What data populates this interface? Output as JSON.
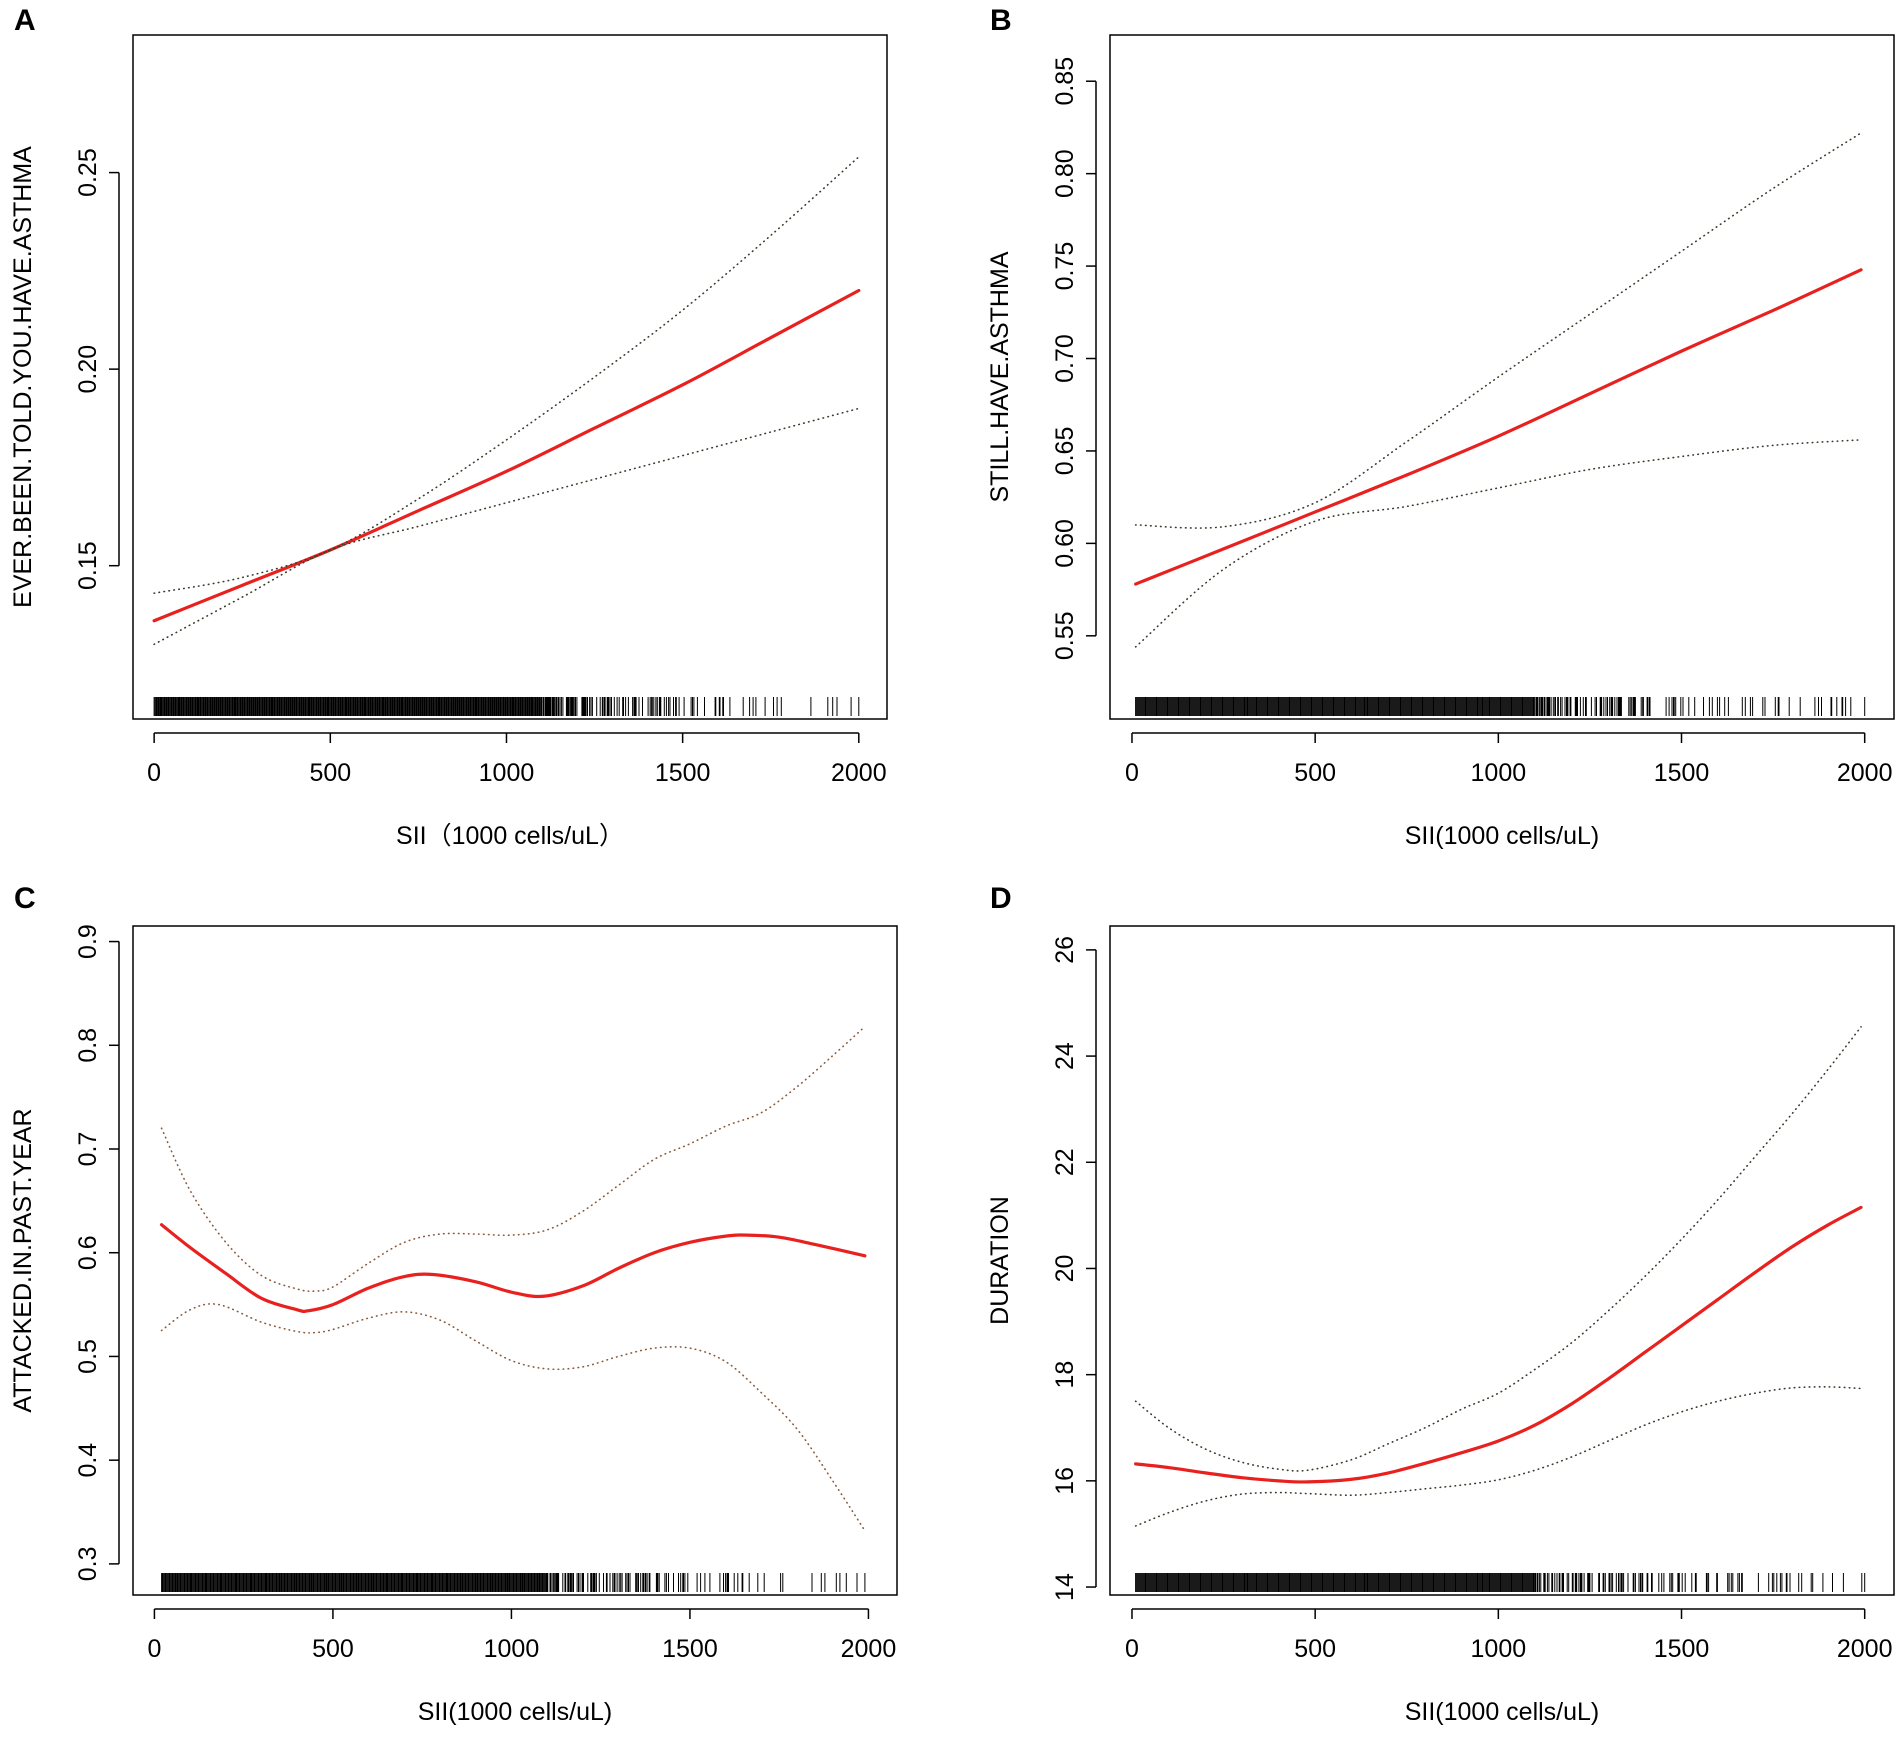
{
  "chart_data": [
    {
      "type": "line",
      "panel_label": "A",
      "xlabel": "SII（1000 cells/uL）",
      "ylabel": "EVER.BEEN.TOLD.YOU.HAVE.ASTHMA",
      "xlim": [
        -60,
        2080
      ],
      "ylim": [
        0.111,
        0.285
      ],
      "xticks": [
        0,
        500,
        1000,
        1500,
        2000
      ],
      "xtick_labels": [
        "0",
        "500",
        "1000",
        "1500",
        "2000"
      ],
      "yticks": [
        0.15,
        0.2,
        0.25
      ],
      "ytick_labels": [
        "0.15",
        "0.20",
        "0.25"
      ],
      "rug_range": [
        0,
        2000
      ],
      "series": [
        {
          "name": "fit",
          "style": "solid",
          "color": "#e8211f",
          "x": [
            0,
            250,
            500,
            750,
            1000,
            1250,
            1500,
            1750,
            2000
          ],
          "y": [
            0.136,
            0.145,
            0.154,
            0.164,
            0.174,
            0.185,
            0.196,
            0.208,
            0.22
          ]
        },
        {
          "name": "upper 95% CI",
          "style": "dotted",
          "color": "#3a3a2a",
          "x": [
            0,
            250,
            500,
            750,
            1000,
            1250,
            1500,
            1750,
            2000
          ],
          "y": [
            0.143,
            0.147,
            0.154,
            0.167,
            0.182,
            0.198,
            0.215,
            0.234,
            0.254
          ]
        },
        {
          "name": "lower 95% CI",
          "style": "dotted",
          "color": "#3a3a2a",
          "x": [
            0,
            250,
            500,
            750,
            1000,
            1250,
            1500,
            1750,
            2000
          ],
          "y": [
            0.13,
            0.142,
            0.154,
            0.16,
            0.166,
            0.172,
            0.178,
            0.184,
            0.19
          ]
        }
      ]
    },
    {
      "type": "line",
      "panel_label": "B",
      "xlabel": "SII(1000 cells/uL)",
      "ylabel": "STILL.HAVE.ASTHMA",
      "xlim": [
        -60,
        2080
      ],
      "ylim": [
        0.505,
        0.875
      ],
      "xticks": [
        0,
        500,
        1000,
        1500,
        2000
      ],
      "xtick_labels": [
        "0",
        "500",
        "1000",
        "1500",
        "2000"
      ],
      "yticks": [
        0.55,
        0.6,
        0.65,
        0.7,
        0.75,
        0.8,
        0.85
      ],
      "ytick_labels": [
        "0.55",
        "0.60",
        "0.65",
        "0.70",
        "0.75",
        "0.80",
        "0.85"
      ],
      "rug_range": [
        10,
        2000
      ],
      "series": [
        {
          "name": "fit",
          "style": "solid",
          "color": "#e8211f",
          "x": [
            10,
            250,
            500,
            750,
            1000,
            1250,
            1500,
            1750,
            1990
          ],
          "y": [
            0.578,
            0.597,
            0.617,
            0.637,
            0.658,
            0.681,
            0.704,
            0.726,
            0.748
          ]
        },
        {
          "name": "upper 95% CI",
          "style": "dotted",
          "color": "#3a3a2a",
          "x": [
            10,
            250,
            500,
            750,
            1000,
            1250,
            1500,
            1750,
            1990
          ],
          "y": [
            0.61,
            0.609,
            0.622,
            0.655,
            0.69,
            0.724,
            0.758,
            0.792,
            0.822
          ]
        },
        {
          "name": "lower 95% CI",
          "style": "dotted",
          "color": "#3a3a2a",
          "x": [
            10,
            250,
            500,
            750,
            1000,
            1250,
            1500,
            1750,
            1990
          ],
          "y": [
            0.544,
            0.586,
            0.612,
            0.62,
            0.63,
            0.64,
            0.647,
            0.653,
            0.656
          ]
        }
      ]
    },
    {
      "type": "line",
      "panel_label": "C",
      "xlabel": "SII(1000 cells/uL)",
      "ylabel": "ATTACKED.IN.PAST.YEAR",
      "xlim": [
        -60,
        2080
      ],
      "ylim": [
        0.27,
        0.915
      ],
      "xticks": [
        0,
        500,
        1000,
        1500,
        2000
      ],
      "xtick_labels": [
        "0",
        "500",
        "1000",
        "1500",
        "2000"
      ],
      "yticks": [
        0.3,
        0.4,
        0.5,
        0.6,
        0.7,
        0.8,
        0.9
      ],
      "ytick_labels": [
        "0.3",
        "0.4",
        "0.5",
        "0.6",
        "0.7",
        "0.8",
        "0.9"
      ],
      "rug_range": [
        20,
        1990
      ],
      "series": [
        {
          "name": "fit",
          "style": "solid",
          "color": "#e8211f",
          "x": [
            20,
            100,
            200,
            300,
            400,
            430,
            500,
            600,
            700,
            780,
            900,
            1000,
            1090,
            1200,
            1300,
            1400,
            1500,
            1600,
            1660,
            1750,
            1850,
            1990
          ],
          "y": [
            0.627,
            0.605,
            0.58,
            0.556,
            0.545,
            0.544,
            0.55,
            0.566,
            0.577,
            0.579,
            0.572,
            0.562,
            0.558,
            0.568,
            0.585,
            0.6,
            0.61,
            0.616,
            0.617,
            0.615,
            0.608,
            0.597
          ]
        },
        {
          "name": "upper 95% CI",
          "style": "dotted",
          "color": "#8a5a3a",
          "x": [
            20,
            100,
            200,
            300,
            400,
            450,
            500,
            600,
            700,
            800,
            900,
            1000,
            1100,
            1200,
            1300,
            1400,
            1500,
            1600,
            1700,
            1800,
            1900,
            1990
          ],
          "y": [
            0.72,
            0.66,
            0.61,
            0.578,
            0.565,
            0.563,
            0.567,
            0.59,
            0.61,
            0.618,
            0.618,
            0.617,
            0.622,
            0.64,
            0.665,
            0.69,
            0.705,
            0.722,
            0.735,
            0.76,
            0.79,
            0.818
          ]
        },
        {
          "name": "lower 95% CI",
          "style": "dotted",
          "color": "#8a5a3a",
          "x": [
            20,
            100,
            180,
            300,
            400,
            450,
            500,
            600,
            700,
            800,
            900,
            1000,
            1100,
            1200,
            1300,
            1400,
            1500,
            1600,
            1700,
            1800,
            1900,
            1990
          ],
          "y": [
            0.525,
            0.545,
            0.55,
            0.533,
            0.524,
            0.523,
            0.526,
            0.537,
            0.543,
            0.535,
            0.515,
            0.496,
            0.488,
            0.49,
            0.5,
            0.508,
            0.508,
            0.495,
            0.465,
            0.43,
            0.38,
            0.332
          ]
        }
      ]
    },
    {
      "type": "line",
      "panel_label": "D",
      "xlabel": "SII(1000 cells/uL)",
      "ylabel": "DURATION",
      "xlim": [
        -60,
        2080
      ],
      "ylim": [
        13.85,
        26.45
      ],
      "xticks": [
        0,
        500,
        1000,
        1500,
        2000
      ],
      "xtick_labels": [
        "0",
        "500",
        "1000",
        "1500",
        "2000"
      ],
      "yticks": [
        14,
        16,
        18,
        20,
        22,
        24,
        26
      ],
      "ytick_labels": [
        "14",
        "16",
        "18",
        "20",
        "22",
        "24",
        "26"
      ],
      "rug_range": [
        10,
        2000
      ],
      "series": [
        {
          "name": "fit",
          "style": "solid",
          "color": "#e8211f",
          "x": [
            10,
            100,
            200,
            300,
            400,
            480,
            600,
            700,
            800,
            900,
            1000,
            1100,
            1200,
            1300,
            1400,
            1500,
            1600,
            1700,
            1800,
            1900,
            1990
          ],
          "y": [
            16.32,
            16.25,
            16.15,
            16.06,
            16.0,
            15.98,
            16.03,
            16.15,
            16.33,
            16.53,
            16.75,
            17.05,
            17.45,
            17.92,
            18.42,
            18.92,
            19.42,
            19.92,
            20.4,
            20.82,
            21.15
          ]
        },
        {
          "name": "upper 95% CI",
          "style": "dotted",
          "color": "#3a3a2a",
          "x": [
            10,
            100,
            200,
            300,
            400,
            480,
            600,
            700,
            800,
            900,
            1000,
            1100,
            1200,
            1300,
            1400,
            1500,
            1600,
            1700,
            1800,
            1900,
            1990
          ],
          "y": [
            17.5,
            17.0,
            16.6,
            16.35,
            16.22,
            16.2,
            16.4,
            16.7,
            17.0,
            17.35,
            17.65,
            18.1,
            18.6,
            19.2,
            19.85,
            20.55,
            21.3,
            22.1,
            22.9,
            23.75,
            24.55
          ]
        },
        {
          "name": "lower 95% CI",
          "style": "dotted",
          "color": "#3a3a2a",
          "x": [
            10,
            100,
            200,
            300,
            400,
            480,
            600,
            700,
            800,
            900,
            1000,
            1100,
            1200,
            1300,
            1400,
            1500,
            1600,
            1700,
            1800,
            1900,
            1990
          ],
          "y": [
            15.15,
            15.4,
            15.62,
            15.75,
            15.78,
            15.76,
            15.73,
            15.78,
            15.85,
            15.92,
            16.02,
            16.2,
            16.45,
            16.75,
            17.05,
            17.3,
            17.5,
            17.65,
            17.75,
            17.77,
            17.74
          ]
        }
      ]
    }
  ]
}
